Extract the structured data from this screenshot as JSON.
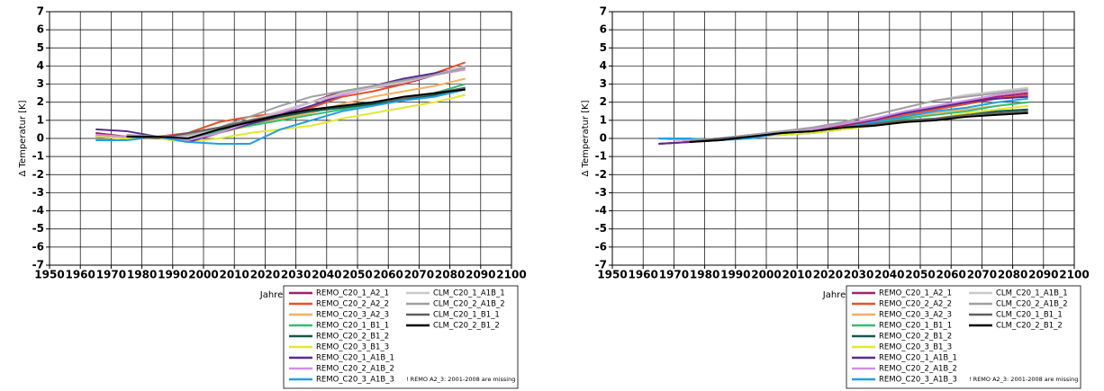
{
  "chart_data": [
    {
      "type": "line",
      "x_label": "Jahre",
      "y_label": "Δ Temperatur [K]",
      "x": [
        1965,
        1975,
        1985,
        1995,
        2005,
        2015,
        2025,
        2035,
        2045,
        2055,
        2065,
        2075,
        2085
      ],
      "xlim": [
        1950,
        2100
      ],
      "xticks": [
        1950,
        1960,
        1970,
        1980,
        1990,
        2000,
        2010,
        2020,
        2030,
        2040,
        2050,
        2060,
        2070,
        2080,
        2090,
        2100
      ],
      "ylim": [
        -7,
        7
      ],
      "yticks": [
        -7,
        -6,
        -5,
        -4,
        -3,
        -2,
        -1,
        0,
        1,
        2,
        3,
        4,
        5,
        6,
        7
      ],
      "grid": true,
      "annotation": "! REMO A2_3: 2001-2008 are missing",
      "series": [
        {
          "name": "REMO_C20_1_A2_1",
          "color": "#a0206e",
          "values": [
            0.3,
            0.1,
            0.1,
            -0.1,
            0.4,
            1.0,
            1.5,
            2.0,
            2.6,
            2.8,
            3.0,
            3.5,
            4.0
          ]
        },
        {
          "name": "REMO_C20_2_A2_2",
          "color": "#e8502a",
          "values": [
            0.2,
            0.1,
            0.1,
            0.3,
            0.9,
            1.2,
            1.4,
            1.7,
            2.3,
            2.6,
            3.0,
            3.6,
            4.2
          ]
        },
        {
          "name": "REMO_C20_3_A2_3",
          "color": "#f5b060",
          "values": [
            0.1,
            0,
            0,
            -0.1,
            0.3,
            0.7,
            1.1,
            1.4,
            1.9,
            2.3,
            2.6,
            2.9,
            3.3
          ]
        },
        {
          "name": "REMO_C20_1_B1_1",
          "color": "#30c070",
          "values": [
            0.1,
            0,
            0.1,
            -0.1,
            0.4,
            0.7,
            1.0,
            1.3,
            1.6,
            1.9,
            2.1,
            2.5,
            3.0
          ]
        },
        {
          "name": "REMO_C20_2_B1_2",
          "color": "#105848",
          "values": [
            0.1,
            0,
            0.1,
            0,
            0.5,
            0.8,
            1.2,
            1.5,
            1.7,
            1.9,
            2.1,
            2.4,
            2.8
          ]
        },
        {
          "name": "REMO_C20_3_B1_3",
          "color": "#e0e830",
          "values": [
            0.1,
            0,
            0,
            -0.2,
            0.0,
            0.3,
            0.5,
            0.7,
            1.1,
            1.4,
            1.7,
            2.0,
            2.4
          ]
        },
        {
          "name": "REMO_C20_1_A1B_1",
          "color": "#5a2a90",
          "values": [
            0.5,
            0.4,
            0.1,
            -0.2,
            0.3,
            0.8,
            1.3,
            1.8,
            2.4,
            2.9,
            3.3,
            3.6,
            3.9
          ]
        },
        {
          "name": "REMO_C20_2_A1B_2",
          "color": "#d090e8",
          "values": [
            0.2,
            0.1,
            0.1,
            -0.1,
            0.3,
            0.9,
            1.4,
            2.0,
            2.4,
            2.8,
            3.1,
            3.5,
            3.8
          ]
        },
        {
          "name": "REMO_C20_3_A1B_3",
          "color": "#20a0e8",
          "values": [
            -0.1,
            -0.1,
            0.1,
            -0.2,
            -0.3,
            -0.3,
            0.5,
            1.0,
            1.5,
            1.8,
            2.1,
            2.3,
            2.7
          ]
        },
        {
          "name": "CLM_C20_1_A1B_1",
          "color": "#c8c8c8",
          "values": [
            null,
            0.2,
            0.1,
            0.1,
            0.5,
            1.0,
            1.5,
            2.0,
            2.5,
            2.8,
            3.1,
            3.5,
            4.0
          ]
        },
        {
          "name": "CLM_C20_2_A1B_2",
          "color": "#a0a0a0",
          "values": [
            null,
            0.2,
            0.1,
            0.2,
            0.6,
            1.2,
            1.8,
            2.3,
            2.6,
            2.9,
            3.2,
            3.5,
            3.9
          ]
        },
        {
          "name": "CLM_C20_1_B1_1",
          "color": "#606060",
          "values": [
            null,
            0.1,
            0.0,
            0.3,
            0.6,
            1.0,
            1.3,
            1.6,
            1.8,
            2.0,
            2.2,
            2.5,
            2.8
          ]
        },
        {
          "name": "CLM_C20_2_B1_2",
          "color": "#000000",
          "values": [
            null,
            0.1,
            0.1,
            0.0,
            0.5,
            0.9,
            1.3,
            1.6,
            1.8,
            2.0,
            2.3,
            2.5,
            2.7
          ]
        }
      ]
    },
    {
      "type": "line",
      "x_label": "Jahre",
      "y_label": "Δ Temperatur [K]",
      "x": [
        1965,
        1975,
        1985,
        1995,
        2005,
        2015,
        2025,
        2035,
        2045,
        2055,
        2065,
        2075,
        2085
      ],
      "xlim": [
        1950,
        2100
      ],
      "xticks": [
        1950,
        1960,
        1970,
        1980,
        1990,
        2000,
        2010,
        2020,
        2030,
        2040,
        2050,
        2060,
        2070,
        2080,
        2090,
        2100
      ],
      "ylim": [
        -7,
        7
      ],
      "yticks": [
        -7,
        -6,
        -5,
        -4,
        -3,
        -2,
        -1,
        0,
        1,
        2,
        3,
        4,
        5,
        6,
        7
      ],
      "grid": true,
      "annotation": "! REMO A2_3: 2001-2008 are missing",
      "series": [
        {
          "name": "REMO_C20_1_A2_1",
          "color": "#a0206e",
          "values": [
            -0.3,
            -0.2,
            0,
            0.2,
            0.3,
            0.4,
            0.7,
            1.0,
            1.4,
            1.7,
            2.0,
            2.3,
            2.5
          ]
        },
        {
          "name": "REMO_C20_2_A2_2",
          "color": "#e8502a",
          "values": [
            -0.3,
            -0.2,
            0,
            0.1,
            0.3,
            0.4,
            0.6,
            0.9,
            1.3,
            1.6,
            1.9,
            2.2,
            2.4
          ]
        },
        {
          "name": "REMO_C20_3_A2_3",
          "color": "#f5b060",
          "values": [
            0,
            -0.1,
            0,
            0.1,
            0.2,
            0.4,
            0.6,
            0.8,
            1.1,
            1.4,
            1.6,
            1.8,
            2.0
          ]
        },
        {
          "name": "REMO_C20_1_B1_1",
          "color": "#30c070",
          "values": [
            0,
            -0.1,
            0,
            0.1,
            0.3,
            0.4,
            0.6,
            0.9,
            1.1,
            1.3,
            1.5,
            1.8,
            2.0
          ]
        },
        {
          "name": "REMO_C20_2_B1_2",
          "color": "#105848",
          "values": [
            0,
            -0.1,
            0,
            0.1,
            0.2,
            0.3,
            0.5,
            0.7,
            0.9,
            1.1,
            1.3,
            1.5,
            1.6
          ]
        },
        {
          "name": "REMO_C20_3_B1_3",
          "color": "#e0e830",
          "values": [
            0,
            -0.1,
            0,
            0.1,
            0.2,
            0.3,
            0.5,
            0.7,
            0.9,
            1.1,
            1.4,
            1.6,
            1.8
          ]
        },
        {
          "name": "REMO_C20_1_A1B_1",
          "color": "#5a2a90",
          "values": [
            -0.3,
            -0.2,
            -0.1,
            0.1,
            0.3,
            0.5,
            0.8,
            1.1,
            1.4,
            1.7,
            2.0,
            2.2,
            2.3
          ]
        },
        {
          "name": "REMO_C20_2_A1B_2",
          "color": "#d090e8",
          "values": [
            0,
            -0.1,
            0,
            0.2,
            0.3,
            0.5,
            0.8,
            1.1,
            1.5,
            1.8,
            2.1,
            2.4,
            2.6
          ]
        },
        {
          "name": "REMO_C20_3_A1B_3",
          "color": "#20a0e8",
          "values": [
            0,
            0,
            -0.1,
            0,
            0.3,
            0.4,
            0.6,
            0.9,
            1.2,
            1.5,
            1.7,
            2.0,
            2.2
          ]
        },
        {
          "name": "CLM_C20_1_A1B_1",
          "color": "#c8c8c8",
          "values": [
            null,
            -0.1,
            0,
            0.2,
            0.4,
            0.6,
            0.9,
            1.3,
            1.7,
            2.1,
            2.4,
            2.6,
            2.8
          ]
        },
        {
          "name": "CLM_C20_2_A1B_2",
          "color": "#a0a0a0",
          "values": [
            null,
            -0.1,
            0,
            0.2,
            0.4,
            0.6,
            0.9,
            1.3,
            1.7,
            2.1,
            2.3,
            2.5,
            2.7
          ]
        },
        {
          "name": "CLM_C20_1_B1_1",
          "color": "#606060",
          "values": [
            null,
            -0.2,
            0,
            0.1,
            0.3,
            0.4,
            0.6,
            0.8,
            1.0,
            1.1,
            1.3,
            1.4,
            1.5
          ]
        },
        {
          "name": "CLM_C20_2_B1_2",
          "color": "#000000",
          "values": [
            null,
            -0.2,
            -0.1,
            0.1,
            0.3,
            0.4,
            0.6,
            0.7,
            0.9,
            1.0,
            1.2,
            1.3,
            1.4
          ]
        }
      ]
    }
  ]
}
